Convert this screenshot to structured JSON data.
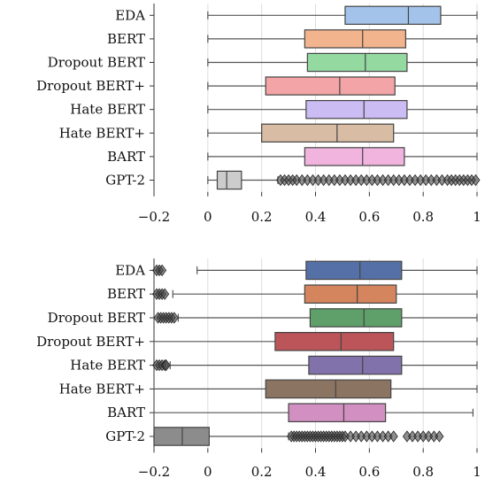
{
  "chart_data": [
    {
      "type": "box",
      "xlim": [
        -0.2,
        1
      ],
      "xticks": [
        -0.2,
        0,
        0.2,
        0.4,
        0.6,
        0.8,
        1
      ],
      "xtick_labels": [
        "−0.2",
        "0",
        "0.2",
        "0.4",
        "0.6",
        "0.8",
        "1"
      ],
      "grid": "x",
      "categories": [
        "EDA",
        "BERT",
        "Dropout BERT",
        "Dropout BERT+",
        "Hate BERT",
        "Hate BERT+",
        "BART",
        "GPT-2"
      ],
      "series": [
        {
          "whisker_low": 0.0,
          "q1": 0.51,
          "median": 0.745,
          "q3": 0.865,
          "whisker_high": 1.0,
          "color": "#a4c3ea",
          "fliers": []
        },
        {
          "whisker_low": 0.0,
          "q1": 0.36,
          "median": 0.575,
          "q3": 0.735,
          "whisker_high": 1.0,
          "color": "#f2b48c",
          "fliers": []
        },
        {
          "whisker_low": 0.0,
          "q1": 0.37,
          "median": 0.585,
          "q3": 0.74,
          "whisker_high": 1.0,
          "color": "#93d9a0",
          "fliers": []
        },
        {
          "whisker_low": 0.0,
          "q1": 0.215,
          "median": 0.49,
          "q3": 0.695,
          "whisker_high": 1.0,
          "color": "#f2a4a6",
          "fliers": []
        },
        {
          "whisker_low": 0.0,
          "q1": 0.365,
          "median": 0.58,
          "q3": 0.74,
          "whisker_high": 1.0,
          "color": "#cbbcf4",
          "fliers": []
        },
        {
          "whisker_low": 0.0,
          "q1": 0.2,
          "median": 0.48,
          "q3": 0.69,
          "whisker_high": 1.0,
          "color": "#d8bca4",
          "fliers": []
        },
        {
          "whisker_low": 0.0,
          "q1": 0.36,
          "median": 0.575,
          "q3": 0.73,
          "whisker_high": 1.0,
          "color": "#f0b4de",
          "fliers": []
        },
        {
          "whisker_low": 0.0,
          "q1": 0.035,
          "median": 0.07,
          "q3": 0.125,
          "whisker_high": 0.26,
          "color": "#cccccc",
          "fliers": [
            0.27,
            0.285,
            0.3,
            0.315,
            0.33,
            0.35,
            0.37,
            0.39,
            0.41,
            0.43,
            0.45,
            0.47,
            0.49,
            0.51,
            0.53,
            0.55,
            0.57,
            0.59,
            0.61,
            0.63,
            0.65,
            0.67,
            0.69,
            0.71,
            0.73,
            0.75,
            0.77,
            0.79,
            0.81,
            0.83,
            0.85,
            0.87,
            0.89,
            0.905,
            0.92,
            0.935,
            0.95,
            0.965,
            0.98,
            0.995
          ]
        }
      ]
    },
    {
      "type": "box",
      "xlim": [
        -0.2,
        1
      ],
      "xticks": [
        -0.2,
        0,
        0.2,
        0.4,
        0.6,
        0.8,
        1
      ],
      "xtick_labels": [
        "−0.2",
        "0",
        "0.2",
        "0.4",
        "0.6",
        "0.8",
        "1"
      ],
      "grid": "x",
      "categories": [
        "EDA",
        "BERT",
        "Dropout BERT",
        "Dropout BERT+",
        "Hate BERT",
        "Hate BERT+",
        "BART",
        "GPT-2"
      ],
      "series": [
        {
          "whisker_low": -0.04,
          "q1": 0.365,
          "median": 0.565,
          "q3": 0.72,
          "whisker_high": 1.0,
          "color": "#5470a6",
          "fliers": [
            -0.19,
            -0.18,
            -0.17
          ]
        },
        {
          "whisker_low": -0.13,
          "q1": 0.36,
          "median": 0.555,
          "q3": 0.7,
          "whisker_high": 1.0,
          "color": "#d4855e",
          "fliers": [
            -0.19,
            -0.18,
            -0.17,
            -0.16
          ]
        },
        {
          "whisker_low": -0.11,
          "q1": 0.38,
          "median": 0.58,
          "q3": 0.72,
          "whisker_high": 1.0,
          "color": "#5e9f6a",
          "fliers": [
            -0.185,
            -0.175,
            -0.165,
            -0.155,
            -0.145,
            -0.135,
            -0.125
          ]
        },
        {
          "whisker_low": -0.2,
          "q1": 0.25,
          "median": 0.495,
          "q3": 0.69,
          "whisker_high": 1.0,
          "color": "#bc5559",
          "fliers": []
        },
        {
          "whisker_low": -0.14,
          "q1": 0.375,
          "median": 0.575,
          "q3": 0.72,
          "whisker_high": 1.0,
          "color": "#8272ab",
          "fliers": [
            -0.19,
            -0.18,
            -0.17,
            -0.16,
            -0.155
          ]
        },
        {
          "whisker_low": -0.2,
          "q1": 0.215,
          "median": 0.475,
          "q3": 0.68,
          "whisker_high": 1.0,
          "color": "#8c7462",
          "fliers": []
        },
        {
          "whisker_low": -0.2,
          "q1": 0.3,
          "median": 0.505,
          "q3": 0.66,
          "whisker_high": 0.985,
          "color": "#d28fc2",
          "fliers": []
        },
        {
          "whisker_low": -0.2,
          "q1": -0.2,
          "median": -0.095,
          "q3": 0.005,
          "whisker_high": 0.3,
          "color": "#8c8c8c",
          "fliers": [
            0.31,
            0.32,
            0.33,
            0.34,
            0.35,
            0.36,
            0.37,
            0.38,
            0.39,
            0.4,
            0.41,
            0.42,
            0.43,
            0.44,
            0.45,
            0.46,
            0.47,
            0.48,
            0.49,
            0.5,
            0.51,
            0.53,
            0.55,
            0.57,
            0.59,
            0.61,
            0.63,
            0.65,
            0.67,
            0.69,
            0.74,
            0.76,
            0.78,
            0.8,
            0.82,
            0.84,
            0.86
          ]
        }
      ]
    }
  ]
}
